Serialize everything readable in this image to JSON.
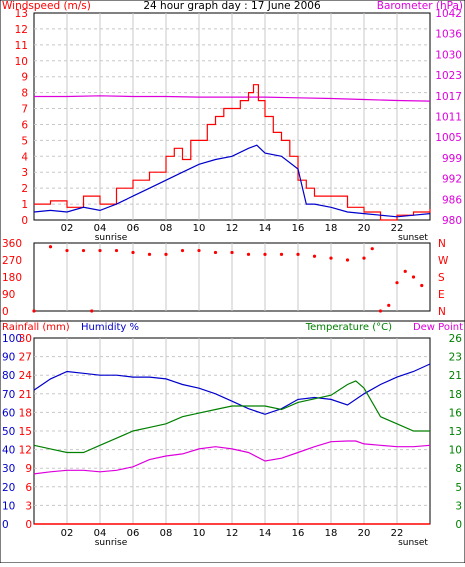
{
  "colors": {
    "windspeed": "#ff0000",
    "avgwind": "#0000cc",
    "barometer": "#dd00dd",
    "direction": "#ff0000",
    "rainfall": "#ff0000",
    "humidity": "#0000cc",
    "temperature": "#008000",
    "dewpoint": "#dd00dd",
    "grid": "#c8c8c8"
  },
  "panel_top": {
    "title": "24 hour graph day : 17 June 2006",
    "left_label": "Windspeed (m/s)",
    "right_label": "Barometer (hPa)",
    "left_ticks": [
      "13",
      "12",
      "11",
      "10",
      "9",
      "8",
      "7",
      "6",
      "5",
      "4",
      "3",
      "2",
      "1",
      "0"
    ],
    "right_ticks": [
      "1042",
      "1036",
      "1030",
      "1023",
      "1017",
      "1011",
      "1005",
      "999",
      "992",
      "986",
      "980"
    ]
  },
  "panel_mid": {
    "left_ticks": [
      "360",
      "270",
      "180",
      "90",
      "0"
    ],
    "right_ticks": [
      "N",
      "W",
      "S",
      "E",
      "N"
    ]
  },
  "panel_bottom": {
    "left_label_1": "Rainfall (mm)",
    "left_label_2": "Humidity %",
    "right_label_1": "Temperature (°C)",
    "right_label_2": "Dew Point",
    "rain_ticks": [
      "30",
      "27",
      "24",
      "21",
      "18",
      "15",
      "12",
      "9",
      "6",
      "3",
      "0"
    ],
    "hum_ticks": [
      "100",
      "90",
      "80",
      "70",
      "60",
      "50",
      "40",
      "30",
      "20",
      "10",
      "0"
    ],
    "right_ticks": [
      "26",
      "23",
      "21",
      "18",
      "16",
      "13",
      "10",
      "8",
      "5",
      "3",
      "0"
    ]
  },
  "x_axis": {
    "hours": [
      "02",
      "04",
      "06",
      "08",
      "10",
      "12",
      "14",
      "16",
      "18",
      "20",
      "22"
    ],
    "sunrise": "sunrise",
    "sunset": "sunset"
  },
  "chart_data": [
    {
      "type": "line",
      "xlabel": "",
      "ylabel": "Windspeed (m/s)",
      "x_range": [
        0,
        24
      ],
      "ylim": [
        0,
        13
      ],
      "y2label": "Barometer (hPa)",
      "y2lim": [
        980,
        1042
      ],
      "series": [
        {
          "name": "Windspeed (m/s)",
          "axis": "left",
          "x": [
            0,
            1,
            2,
            3,
            4,
            5,
            6,
            7,
            8,
            8.5,
            9,
            9.5,
            10,
            10.5,
            11,
            11.5,
            12,
            12.5,
            13,
            13.3,
            13.6,
            14,
            14.5,
            15,
            15.5,
            16,
            16.5,
            17,
            18,
            19,
            20,
            21,
            22,
            23,
            24
          ],
          "y": [
            1,
            1.2,
            0.8,
            1.5,
            1,
            2,
            2.5,
            3,
            4,
            4.5,
            3.8,
            5,
            5,
            6,
            6.5,
            7,
            7,
            7.5,
            8,
            8.5,
            7.5,
            6.5,
            5.5,
            5,
            4,
            2.5,
            2,
            1.5,
            1.5,
            0.8,
            0.5,
            0,
            0.3,
            0.5,
            0.7
          ]
        },
        {
          "name": "avg",
          "axis": "left",
          "x": [
            0,
            1,
            2,
            3,
            4,
            5,
            6,
            7,
            8,
            9,
            10,
            11,
            12,
            13,
            13.5,
            14,
            15,
            16,
            16.5,
            17,
            18,
            19,
            20,
            21,
            22,
            23,
            24
          ],
          "y": [
            0.5,
            0.6,
            0.5,
            0.8,
            0.6,
            1,
            1.5,
            2,
            2.5,
            3,
            3.5,
            3.8,
            4,
            4.5,
            4.7,
            4.2,
            4,
            3.2,
            1,
            1,
            0.8,
            0.5,
            0.4,
            0.3,
            0.2,
            0.3,
            0.4
          ]
        },
        {
          "name": "Barometer (hPa)",
          "axis": "right",
          "x": [
            0,
            2,
            4,
            6,
            8,
            10,
            12,
            14,
            16,
            18,
            20,
            22,
            24
          ],
          "y": [
            1017,
            1017,
            1017.2,
            1017,
            1017,
            1016.8,
            1016.8,
            1016.8,
            1016.6,
            1016.4,
            1016.1,
            1015.8,
            1015.6
          ]
        }
      ]
    },
    {
      "type": "scatter",
      "xlabel": "",
      "ylabel": "",
      "x_range": [
        0,
        24
      ],
      "ylim": [
        0,
        360
      ],
      "series": [
        {
          "name": "direction",
          "x": [
            0,
            1,
            2,
            3,
            3.5,
            4,
            5,
            6,
            7,
            8,
            9,
            10,
            11,
            12,
            13,
            14,
            15,
            16,
            17,
            18,
            19,
            20,
            20.5,
            21,
            21.5,
            22,
            22.5,
            23,
            23.5
          ],
          "y": [
            0,
            340,
            320,
            320,
            0,
            320,
            320,
            310,
            300,
            300,
            320,
            320,
            310,
            310,
            300,
            300,
            300,
            300,
            290,
            280,
            270,
            280,
            330,
            0,
            30,
            150,
            210,
            180,
            135
          ]
        }
      ]
    },
    {
      "type": "line",
      "xlabel": "",
      "ylabel": "Humidity %",
      "x_range": [
        0,
        24
      ],
      "ylim": [
        0,
        100
      ],
      "y2label": "Temperature (°C)",
      "y2lim": [
        0,
        26
      ],
      "series": [
        {
          "name": "Humidity %",
          "axis": "left",
          "x": [
            0,
            1,
            2,
            3,
            4,
            5,
            6,
            7,
            8,
            9,
            10,
            11,
            12,
            13,
            14,
            15,
            16,
            17,
            18,
            19,
            20,
            21,
            22,
            23,
            24
          ],
          "y": [
            72,
            78,
            82,
            81,
            80,
            80,
            79,
            79,
            78,
            75,
            73,
            70,
            66,
            62,
            59,
            62,
            67,
            68,
            67,
            64,
            70,
            75,
            79,
            82,
            86
          ]
        },
        {
          "name": "Temperature (°C)",
          "axis": "right",
          "x": [
            0,
            1,
            2,
            3,
            4,
            5,
            6,
            7,
            8,
            9,
            10,
            11,
            12,
            13,
            14,
            15,
            16,
            17,
            18,
            19,
            19.5,
            20,
            20.5,
            21,
            22,
            23,
            24
          ],
          "y": [
            11,
            10.5,
            10,
            10,
            11,
            12,
            13,
            13.5,
            14,
            15,
            15.5,
            16,
            16.5,
            16.5,
            16.5,
            16,
            17,
            17.5,
            18,
            19.5,
            20,
            19,
            17,
            15,
            14,
            13,
            13
          ]
        },
        {
          "name": "Dew Point",
          "axis": "right",
          "x": [
            0,
            1,
            2,
            3,
            4,
            5,
            6,
            7,
            8,
            9,
            10,
            11,
            12,
            13,
            14,
            15,
            16,
            17,
            18,
            19,
            19.5,
            20,
            21,
            22,
            23,
            24
          ],
          "y": [
            7,
            7.3,
            7.5,
            7.5,
            7.3,
            7.5,
            8,
            9,
            9.5,
            9.8,
            10.5,
            10.8,
            10.5,
            10,
            8.8,
            9.2,
            10,
            10.8,
            11.5,
            11.6,
            11.6,
            11.2,
            11,
            10.8,
            10.8,
            11
          ]
        },
        {
          "name": "Rainfall (mm)",
          "axis": "left",
          "x": [
            0,
            24
          ],
          "y": [
            0,
            0
          ]
        }
      ]
    }
  ]
}
